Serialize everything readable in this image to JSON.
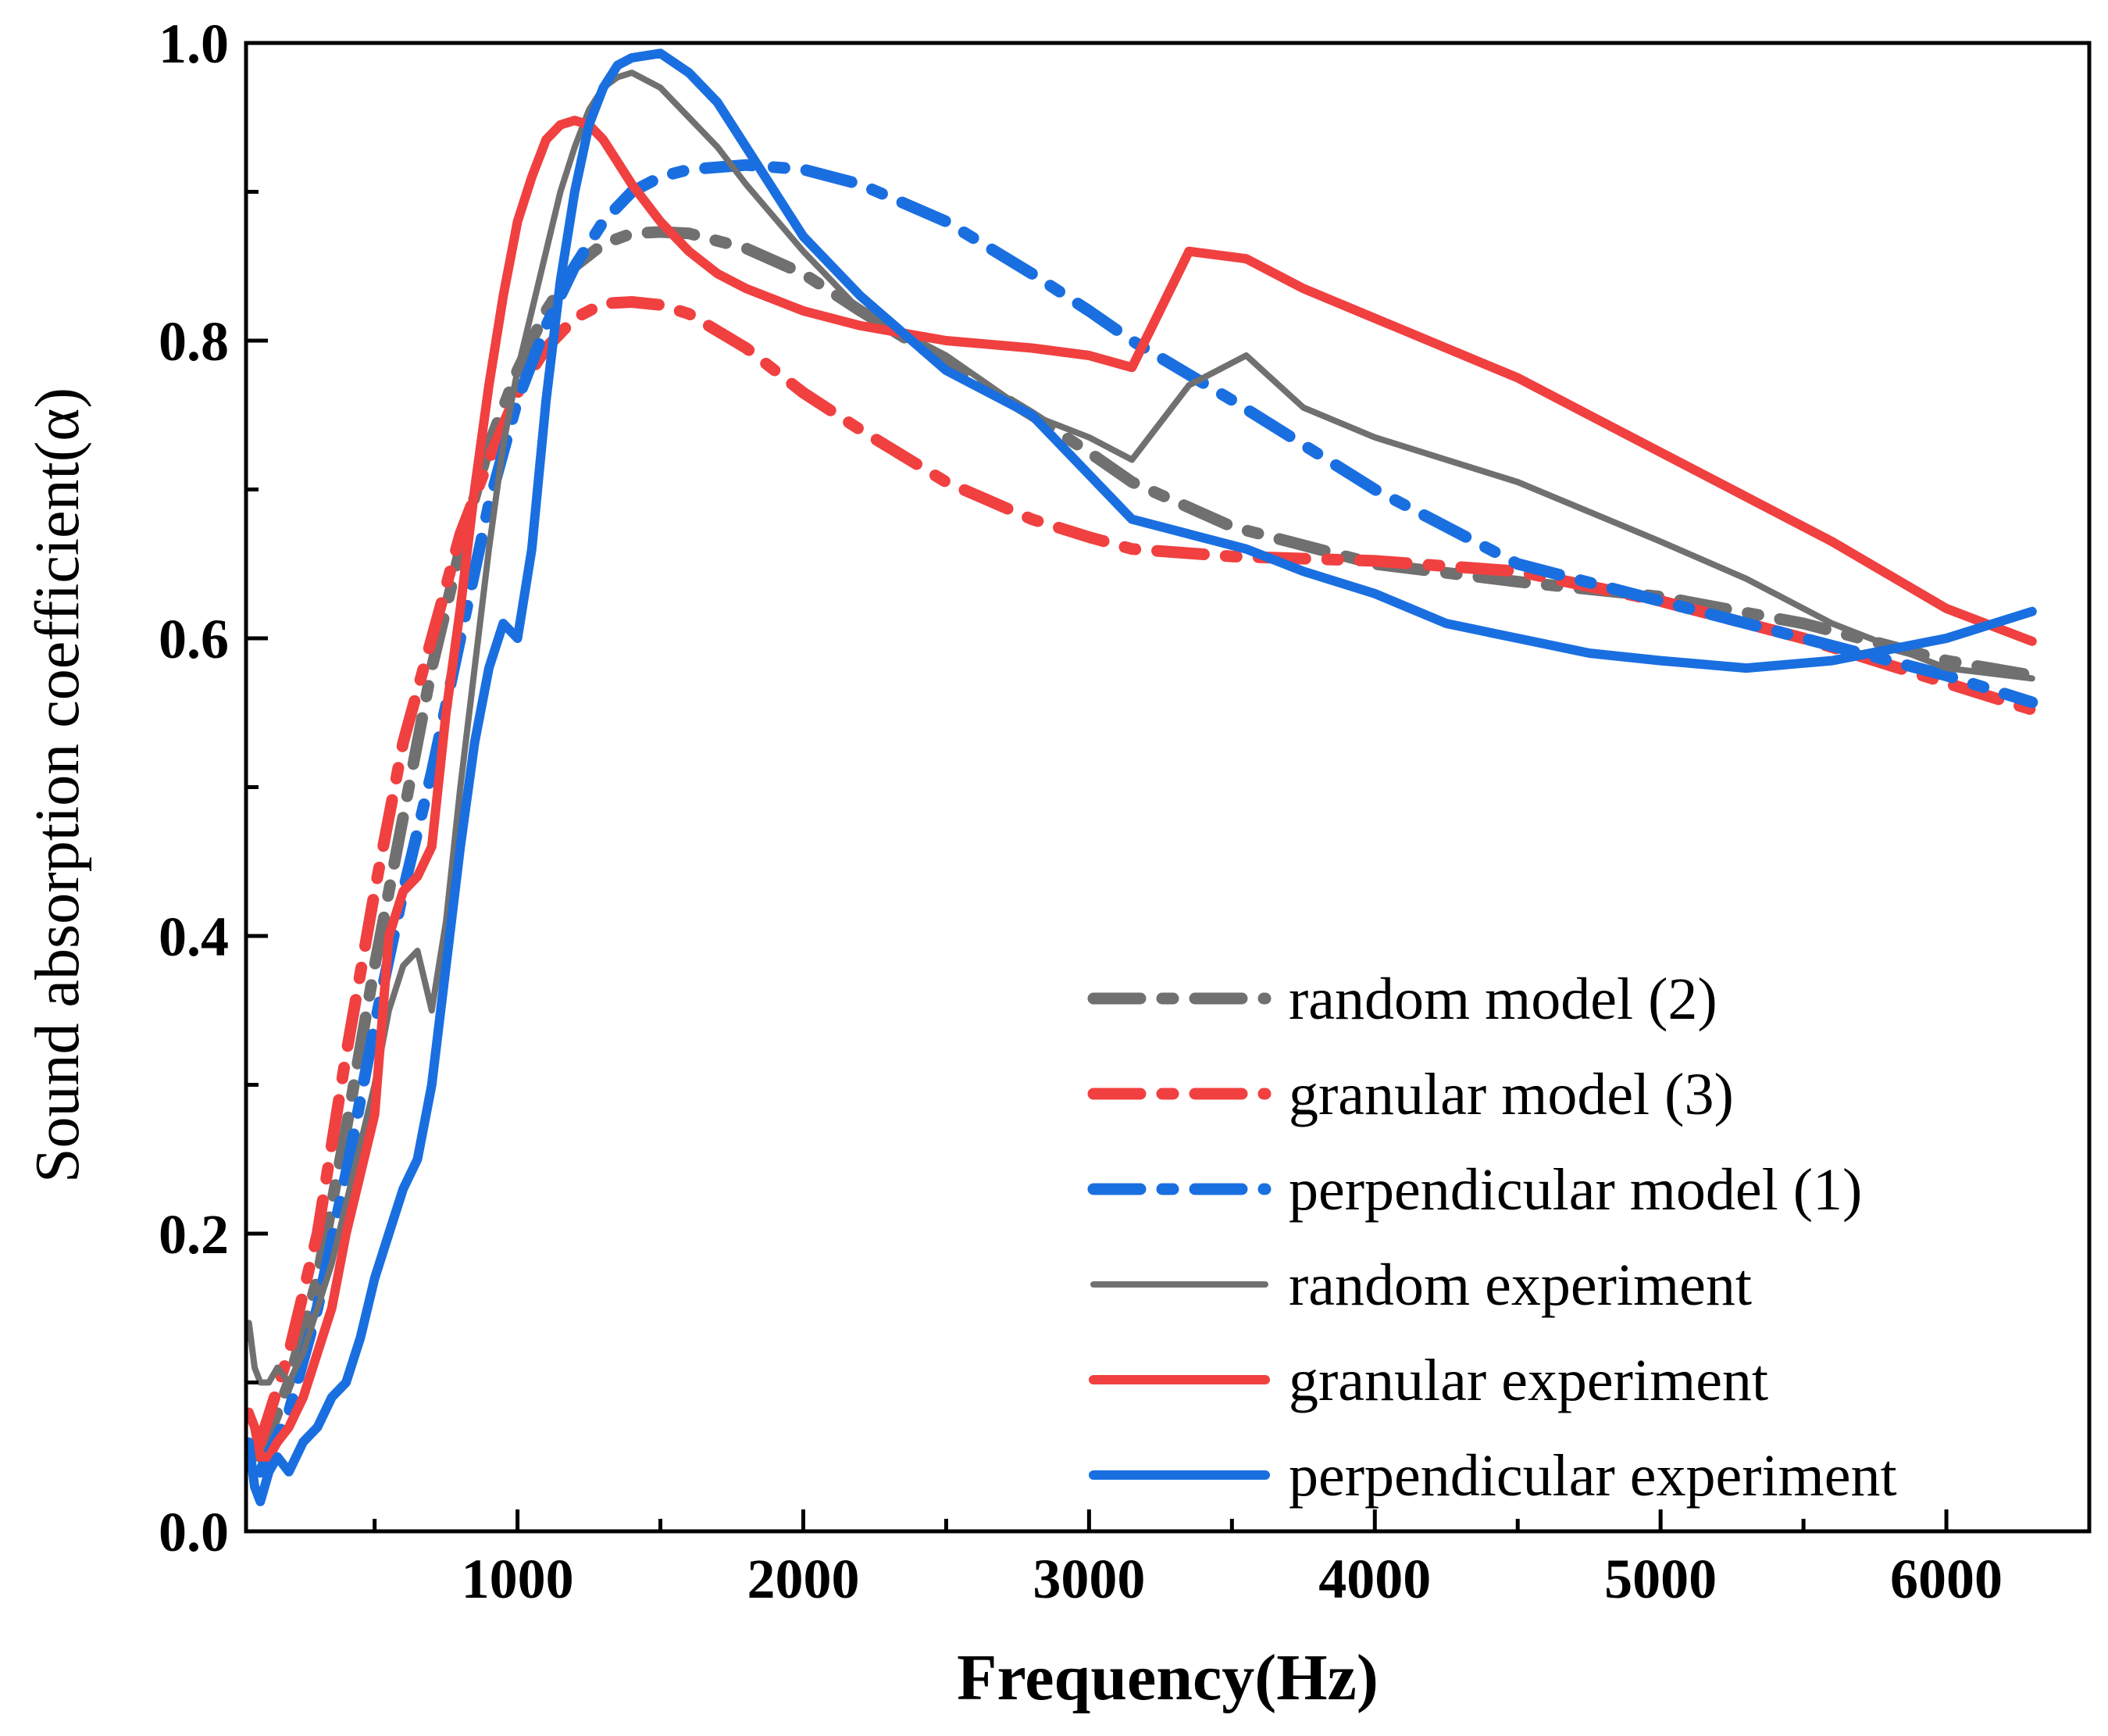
{
  "chart_data": {
    "type": "line",
    "title": "",
    "xlabel": "Frequency(Hz)",
    "ylabel": "Sound absorption coefficient(α)",
    "xlim": [
      50,
      6500
    ],
    "ylim": [
      0,
      1.0
    ],
    "x_ticks": [
      1000,
      2000,
      3000,
      4000,
      5000,
      6000
    ],
    "x_tick_labels": [
      "1000",
      "2000",
      "3000",
      "4000",
      "5000",
      "6000"
    ],
    "y_ticks": [
      0.0,
      0.2,
      0.4,
      0.6,
      0.8,
      1.0
    ],
    "y_tick_labels": [
      "0.0",
      "0.2",
      "0.4",
      "0.6",
      "0.8",
      "1.0"
    ],
    "grid": false,
    "legend_position": "bottom-right",
    "series": [
      {
        "name": "random model (2)",
        "color": "#707070",
        "style": "dash-dot",
        "x": [
          100,
          200,
          300,
          400,
          500,
          600,
          700,
          800,
          900,
          1000,
          1100,
          1200,
          1300,
          1400,
          1500,
          1600,
          1800,
          2000,
          2200,
          2500,
          2800,
          3000,
          3150,
          3500,
          4000,
          4500,
          5000,
          5500,
          6000,
          6300
        ],
        "y": [
          0.05,
          0.1,
          0.17,
          0.27,
          0.38,
          0.48,
          0.58,
          0.66,
          0.73,
          0.78,
          0.82,
          0.85,
          0.865,
          0.872,
          0.873,
          0.872,
          0.862,
          0.845,
          0.82,
          0.785,
          0.75,
          0.725,
          0.705,
          0.675,
          0.65,
          0.638,
          0.628,
          0.61,
          0.585,
          0.575
        ]
      },
      {
        "name": "granular model (3)",
        "color": "#f04040",
        "style": "dash-dot",
        "x": [
          100,
          200,
          300,
          400,
          500,
          600,
          700,
          800,
          900,
          1000,
          1100,
          1200,
          1300,
          1400,
          1500,
          1600,
          1800,
          2000,
          2200,
          2500,
          2800,
          3000,
          3150,
          3500,
          4000,
          4500,
          5000,
          5500,
          6000,
          6300
        ],
        "y": [
          0.06,
          0.12,
          0.2,
          0.32,
          0.43,
          0.53,
          0.6,
          0.67,
          0.72,
          0.765,
          0.795,
          0.815,
          0.825,
          0.826,
          0.824,
          0.818,
          0.795,
          0.765,
          0.74,
          0.705,
          0.68,
          0.668,
          0.66,
          0.655,
          0.652,
          0.645,
          0.625,
          0.6,
          0.57,
          0.552
        ]
      },
      {
        "name": "perpendicular model (1)",
        "color": "#1a6fe0",
        "style": "dash-dot",
        "x": [
          100,
          200,
          300,
          400,
          500,
          600,
          700,
          800,
          900,
          1000,
          1100,
          1200,
          1300,
          1400,
          1500,
          1600,
          1800,
          2000,
          2200,
          2500,
          2800,
          3000,
          3150,
          3500,
          4000,
          4500,
          5000,
          5500,
          6000,
          6300
        ],
        "y": [
          0.04,
          0.08,
          0.15,
          0.24,
          0.34,
          0.43,
          0.51,
          0.6,
          0.69,
          0.76,
          0.81,
          0.85,
          0.88,
          0.9,
          0.91,
          0.915,
          0.918,
          0.915,
          0.905,
          0.88,
          0.845,
          0.82,
          0.8,
          0.76,
          0.7,
          0.65,
          0.625,
          0.6,
          0.575,
          0.557
        ]
      },
      {
        "name": "random experiment",
        "color": "#707070",
        "style": "solid",
        "x": [
          60,
          80,
          100,
          130,
          160,
          200,
          250,
          300,
          350,
          400,
          450,
          500,
          550,
          600,
          650,
          700,
          750,
          800,
          850,
          900,
          950,
          1000,
          1050,
          1100,
          1150,
          1200,
          1250,
          1300,
          1350,
          1400,
          1500,
          1600,
          1700,
          1800,
          2000,
          2200,
          2500,
          2800,
          3000,
          3150,
          3350,
          3550,
          3750,
          4000,
          4250,
          4500,
          4750,
          5000,
          5300,
          5600,
          6000,
          6300
        ],
        "y": [
          0.14,
          0.11,
          0.1,
          0.1,
          0.11,
          0.1,
          0.12,
          0.15,
          0.18,
          0.22,
          0.26,
          0.3,
          0.35,
          0.38,
          0.39,
          0.35,
          0.41,
          0.5,
          0.58,
          0.66,
          0.73,
          0.78,
          0.82,
          0.86,
          0.9,
          0.93,
          0.955,
          0.97,
          0.977,
          0.98,
          0.97,
          0.95,
          0.93,
          0.905,
          0.86,
          0.82,
          0.79,
          0.75,
          0.735,
          0.72,
          0.77,
          0.79,
          0.755,
          0.735,
          0.72,
          0.705,
          0.685,
          0.665,
          0.64,
          0.61,
          0.58,
          0.573
        ]
      },
      {
        "name": "granular experiment",
        "color": "#f04040",
        "style": "solid",
        "x": [
          60,
          80,
          100,
          130,
          160,
          200,
          250,
          300,
          350,
          400,
          450,
          500,
          550,
          600,
          650,
          700,
          750,
          800,
          850,
          900,
          950,
          1000,
          1050,
          1100,
          1150,
          1200,
          1250,
          1300,
          1350,
          1400,
          1500,
          1600,
          1700,
          1800,
          2000,
          2200,
          2500,
          2800,
          3000,
          3150,
          3350,
          3550,
          3750,
          4000,
          4250,
          4500,
          4750,
          5000,
          5300,
          5600,
          6000,
          6300
        ],
        "y": [
          0.08,
          0.07,
          0.05,
          0.05,
          0.06,
          0.07,
          0.09,
          0.12,
          0.15,
          0.2,
          0.24,
          0.28,
          0.4,
          0.43,
          0.44,
          0.46,
          0.55,
          0.62,
          0.7,
          0.77,
          0.83,
          0.88,
          0.91,
          0.935,
          0.945,
          0.948,
          0.945,
          0.935,
          0.92,
          0.905,
          0.88,
          0.86,
          0.845,
          0.835,
          0.82,
          0.81,
          0.8,
          0.795,
          0.79,
          0.782,
          0.86,
          0.855,
          0.835,
          0.815,
          0.795,
          0.775,
          0.75,
          0.725,
          0.695,
          0.665,
          0.62,
          0.598
        ]
      },
      {
        "name": "perpendicular experiment",
        "color": "#1a6fe0",
        "style": "solid",
        "x": [
          60,
          80,
          100,
          130,
          160,
          200,
          250,
          300,
          350,
          400,
          450,
          500,
          550,
          600,
          650,
          700,
          750,
          800,
          850,
          900,
          950,
          1000,
          1050,
          1100,
          1150,
          1200,
          1250,
          1300,
          1350,
          1400,
          1500,
          1600,
          1700,
          1800,
          2000,
          2200,
          2500,
          2800,
          3000,
          3150,
          3350,
          3550,
          3750,
          4000,
          4250,
          4500,
          4750,
          5000,
          5300,
          5600,
          6000,
          6300
        ],
        "y": [
          0.06,
          0.03,
          0.02,
          0.04,
          0.05,
          0.04,
          0.06,
          0.07,
          0.09,
          0.1,
          0.13,
          0.17,
          0.2,
          0.23,
          0.25,
          0.3,
          0.38,
          0.46,
          0.53,
          0.58,
          0.61,
          0.6,
          0.66,
          0.76,
          0.84,
          0.9,
          0.945,
          0.97,
          0.985,
          0.99,
          0.993,
          0.98,
          0.96,
          0.93,
          0.87,
          0.83,
          0.78,
          0.75,
          0.71,
          0.68,
          0.67,
          0.66,
          0.645,
          0.63,
          0.61,
          0.6,
          0.59,
          0.585,
          0.58,
          0.585,
          0.6,
          0.618
        ]
      }
    ]
  }
}
